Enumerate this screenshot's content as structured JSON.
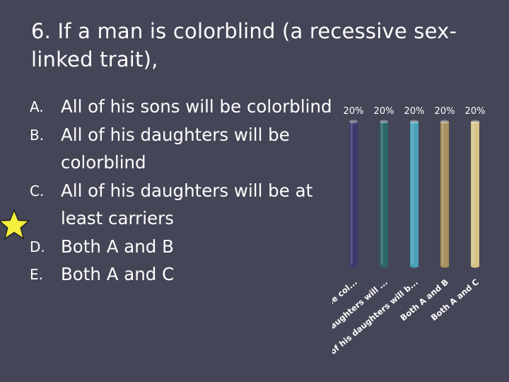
{
  "slide": {
    "title": "6.  If a man is colorblind (a recessive sex-linked trait),",
    "answers": [
      {
        "letter": "A.",
        "text": "All of his sons will be colorblind"
      },
      {
        "letter": "B.",
        "text": "All of his daughters will be colorblind"
      },
      {
        "letter": "C.",
        "text": "All of his daughters will be at least carriers"
      },
      {
        "letter": "D.",
        "text": "Both A and B"
      },
      {
        "letter": "E.",
        "text": "Both A and C"
      }
    ],
    "correct_marker": "star-icon",
    "correct_index": 2
  },
  "chart_data": {
    "type": "bar",
    "categories": [
      "All of his sons will be col...",
      "All of his daughters will ...",
      "All of his daughters will b...",
      "Both A and B",
      "Both A and C"
    ],
    "values": [
      20,
      20,
      20,
      20,
      20
    ],
    "value_labels": [
      "20%",
      "20%",
      "20%",
      "20%",
      "20%"
    ],
    "ylim": [
      0,
      20
    ],
    "colors": [
      "#3a3a70",
      "#2c6666",
      "#4aa0b8",
      "#a89060",
      "#d8c48a"
    ],
    "grid": false,
    "legend": "none"
  }
}
